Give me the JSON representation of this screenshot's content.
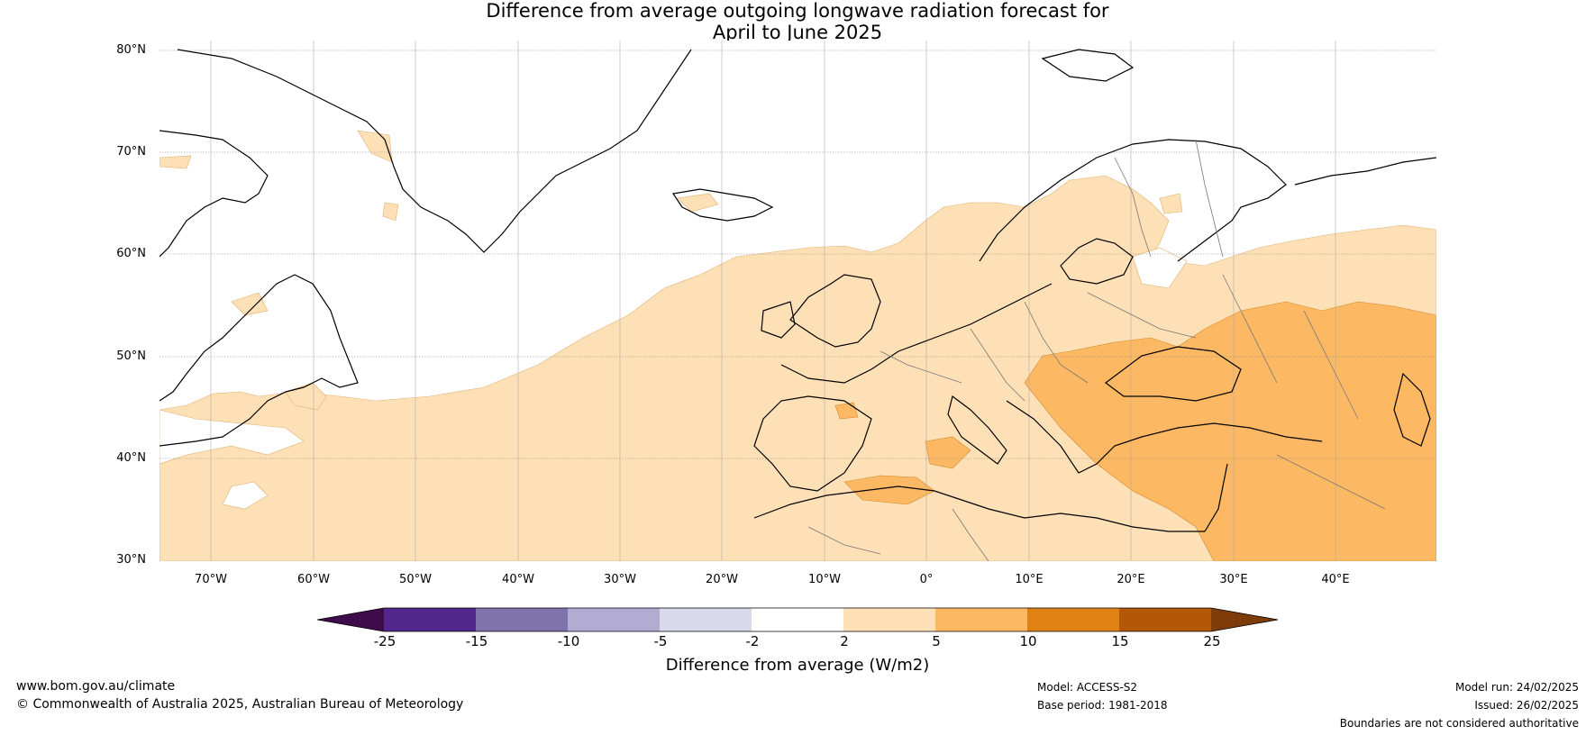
{
  "title": {
    "line1": "Difference from average outgoing longwave radiation forecast for",
    "line2": "April to June 2025"
  },
  "axes": {
    "lat_labels": [
      "80°N",
      "70°N",
      "60°N",
      "50°N",
      "40°N",
      "30°N"
    ],
    "lon_labels": [
      "70°W",
      "60°W",
      "50°W",
      "40°W",
      "30°W",
      "20°W",
      "10°W",
      "0°",
      "10°E",
      "20°E",
      "30°E",
      "40°E"
    ]
  },
  "colorbar": {
    "ticks": [
      "-25",
      "-15",
      "-10",
      "-5",
      "-2",
      "2",
      "5",
      "10",
      "15",
      "25"
    ],
    "colors": [
      "#3f0b4a",
      "#54278f",
      "#8073ac",
      "#b2abd2",
      "#d8daeb",
      "#ffffff",
      "#fee0b6",
      "#fdb863",
      "#e08214",
      "#b35806",
      "#7f3b08"
    ],
    "label": "Difference from average (W/m2)"
  },
  "footer": {
    "website": "www.bom.gov.au/climate",
    "copyright": "© Commonwealth of Australia 2025, Australian Bureau of Meteorology",
    "model": "Model: ACCESS-S2",
    "base_period": "Base period: 1981-2018",
    "model_run": "Model run: 24/02/2025",
    "issued": "Issued: 26/02/2025",
    "disclaimer": "Boundaries are not considered authoritative"
  }
}
